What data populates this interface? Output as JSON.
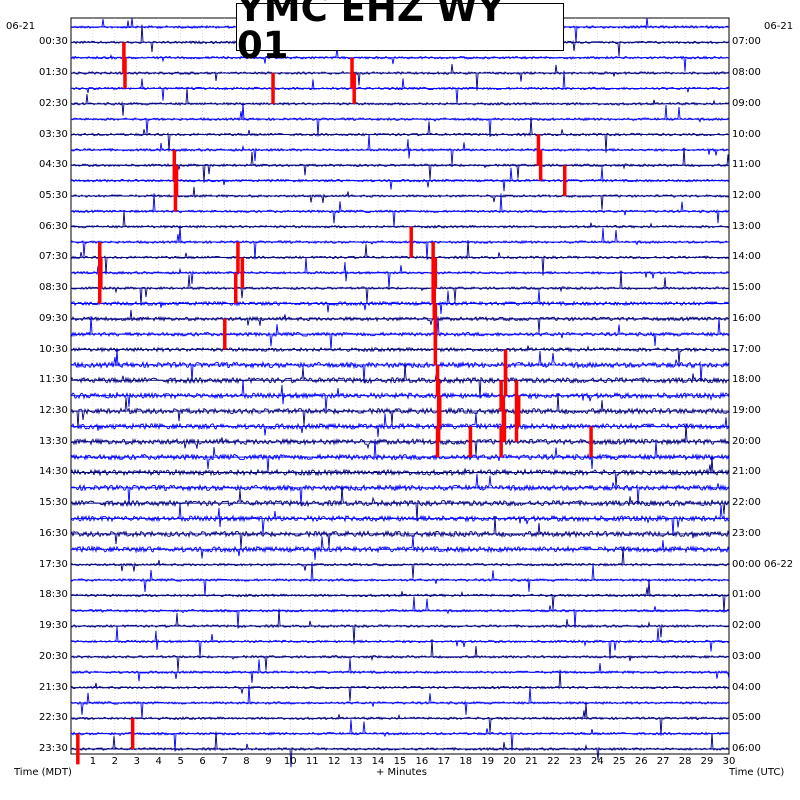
{
  "chart_data": {
    "type": "seismogram",
    "title": "YMC EHZ WY 01",
    "station": "YMC",
    "channel": "EHZ",
    "network": "WY",
    "location": "01",
    "date_left": "06-21",
    "date_right": "06-21",
    "left_axis_label": "Time (MDT)",
    "right_axis_label": "Time (UTC)",
    "x_axis_label": "+ Minutes",
    "x_ticks": [
      "1",
      "2",
      "3",
      "4",
      "5",
      "6",
      "7",
      "8",
      "9",
      "10",
      "11",
      "12",
      "13",
      "14",
      "15",
      "16",
      "17",
      "18",
      "19",
      "20",
      "21",
      "22",
      "23",
      "24",
      "25",
      "26",
      "27",
      "28",
      "29",
      "30"
    ],
    "xlim": [
      0,
      30
    ],
    "left_time_labels": [
      "00:30",
      "01:30",
      "02:30",
      "03:30",
      "04:30",
      "05:30",
      "06:30",
      "07:30",
      "08:30",
      "09:30",
      "10:30",
      "11:30",
      "12:30",
      "13:30",
      "14:30",
      "15:30",
      "16:30",
      "17:30",
      "18:30",
      "19:30",
      "20:30",
      "21:30",
      "22:30",
      "23:30"
    ],
    "right_time_labels": [
      "07:00",
      "08:00",
      "09:00",
      "10:00",
      "11:00",
      "12:00",
      "13:00",
      "14:00",
      "15:00",
      "16:00",
      "17:00",
      "18:00",
      "19:00",
      "20:00",
      "21:00",
      "22:00",
      "23:00",
      "00:00 06-22",
      "01:00",
      "02:00",
      "03:00",
      "04:00",
      "05:00",
      "06:00"
    ],
    "traces_per_hour": 2,
    "trace_count": 48,
    "trace_colors": [
      "#0000ff",
      "#000080"
    ],
    "clip_color": "#ff0000",
    "grid": "dotted",
    "clipped_events": [
      {
        "trace": 2,
        "minute": 2.4
      },
      {
        "trace": 3,
        "minute": 2.45
      },
      {
        "trace": 3,
        "minute": 12.8
      },
      {
        "trace": 4,
        "minute": 12.9
      },
      {
        "trace": 4,
        "minute": 9.2
      },
      {
        "trace": 8,
        "minute": 21.3
      },
      {
        "trace": 9,
        "minute": 21.4
      },
      {
        "trace": 9,
        "minute": 4.7
      },
      {
        "trace": 10,
        "minute": 4.8
      },
      {
        "trace": 11,
        "minute": 4.75
      },
      {
        "trace": 10,
        "minute": 22.5
      },
      {
        "trace": 15,
        "minute": 1.3
      },
      {
        "trace": 16,
        "minute": 1.35
      },
      {
        "trace": 17,
        "minute": 1.3
      },
      {
        "trace": 15,
        "minute": 7.6
      },
      {
        "trace": 16,
        "minute": 7.8
      },
      {
        "trace": 17,
        "minute": 7.5
      },
      {
        "trace": 14,
        "minute": 15.5
      },
      {
        "trace": 15,
        "minute": 16.5
      },
      {
        "trace": 16,
        "minute": 16.6
      },
      {
        "trace": 17,
        "minute": 16.5
      },
      {
        "trace": 18,
        "minute": 16.55
      },
      {
        "trace": 19,
        "minute": 16.6
      },
      {
        "trace": 20,
        "minute": 7.0
      },
      {
        "trace": 20,
        "minute": 16.6
      },
      {
        "trace": 21,
        "minute": 16.6
      },
      {
        "trace": 22,
        "minute": 19.8
      },
      {
        "trace": 23,
        "minute": 19.8
      },
      {
        "trace": 23,
        "minute": 16.7
      },
      {
        "trace": 24,
        "minute": 16.75
      },
      {
        "trace": 25,
        "minute": 16.8
      },
      {
        "trace": 26,
        "minute": 16.75
      },
      {
        "trace": 27,
        "minute": 16.7
      },
      {
        "trace": 24,
        "minute": 19.6
      },
      {
        "trace": 25,
        "minute": 19.7
      },
      {
        "trace": 26,
        "minute": 19.75
      },
      {
        "trace": 27,
        "minute": 19.6
      },
      {
        "trace": 24,
        "minute": 20.3
      },
      {
        "trace": 25,
        "minute": 20.4
      },
      {
        "trace": 26,
        "minute": 20.3
      },
      {
        "trace": 27,
        "minute": 18.2
      },
      {
        "trace": 27,
        "minute": 23.7
      },
      {
        "trace": 46,
        "minute": 2.8
      },
      {
        "trace": 47,
        "minute": 0.3
      }
    ]
  }
}
